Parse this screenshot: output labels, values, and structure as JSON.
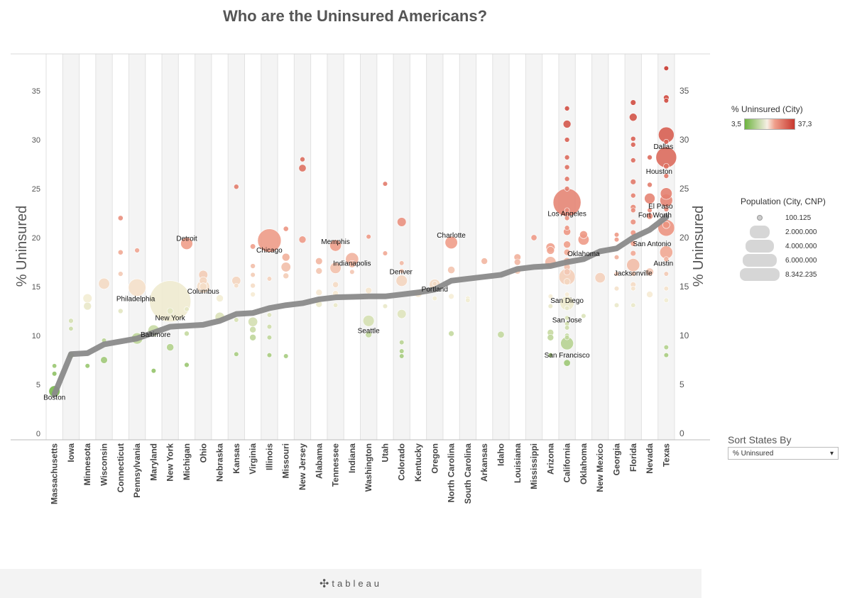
{
  "title": "Who are the Uninsured Americans?",
  "footer": {
    "brand": "tableau"
  },
  "legends": {
    "color": {
      "title": "% Uninsured (City)",
      "min_label": "3,5",
      "max_label": "37,3"
    },
    "size": {
      "title": "Population (City, CNP)",
      "entries": [
        "100.125",
        "2.000.000",
        "4.000.000",
        "6.000.000",
        "8.342.235"
      ]
    }
  },
  "sort_control": {
    "label": "Sort States By",
    "selected": "% Uninsured"
  },
  "chart_data": {
    "type": "scatter",
    "title": "Who are the Uninsured Americans?",
    "ylabel": "% Uninsured",
    "xlabel": "",
    "ylim": [
      0,
      38
    ],
    "y_ticks": [
      0,
      5,
      10,
      15,
      20,
      25,
      30,
      35
    ],
    "grid": false,
    "categories": [
      "Massachusetts",
      "Iowa",
      "Minnesota",
      "Wisconsin",
      "Connecticut",
      "Pennsylvania",
      "Maryland",
      "New York",
      "Michigan",
      "Ohio",
      "Nebraska",
      "Kansas",
      "Virginia",
      "Illinois",
      "Missouri",
      "New Jersey",
      "Alabama",
      "Tennessee",
      "Indiana",
      "Washington",
      "Utah",
      "Colorado",
      "Kentucky",
      "Oregon",
      "North Carolina",
      "South Carolina",
      "Arkansas",
      "Idaho",
      "Louisiana",
      "Mississippi",
      "Arizona",
      "California",
      "Oklahoma",
      "New Mexico",
      "Georgia",
      "Florida",
      "Nevada",
      "Texas"
    ],
    "state_average": [
      4.0,
      8.1,
      8.2,
      9.1,
      9.4,
      9.7,
      10.3,
      10.9,
      11.0,
      11.1,
      11.5,
      12.2,
      12.3,
      12.8,
      13.1,
      13.3,
      13.7,
      13.9,
      13.95,
      14.0,
      14.0,
      14.2,
      14.4,
      14.7,
      15.6,
      15.8,
      16.0,
      16.2,
      16.8,
      17.0,
      17.1,
      17.5,
      17.8,
      18.6,
      18.9,
      20.0,
      20.8,
      22.1
    ],
    "labeled_cities": [
      {
        "name": "Boston",
        "state": "Massachusetts",
        "value": 4.3,
        "population": 610000
      },
      {
        "name": "Baltimore",
        "state": "Pennsylvania",
        "value": 9.7,
        "population": 620000
      },
      {
        "name": "Philadelphia",
        "state": "Pennsylvania",
        "value": 14.9,
        "population": 1500000
      },
      {
        "name": "New York",
        "state": "New York",
        "value": 13.5,
        "population": 8342235
      },
      {
        "name": "Detroit",
        "state": "Michigan",
        "value": 19.4,
        "population": 700000
      },
      {
        "name": "Columbus",
        "state": "Ohio",
        "value": 15.0,
        "population": 800000
      },
      {
        "name": "Chicago",
        "state": "Illinois",
        "value": 19.7,
        "population": 2700000
      },
      {
        "name": "Memphis",
        "state": "Tennessee",
        "value": 19.2,
        "population": 650000
      },
      {
        "name": "Indianapolis",
        "state": "Indiana",
        "value": 17.8,
        "population": 830000
      },
      {
        "name": "Seattle",
        "state": "Washington",
        "value": 11.5,
        "population": 620000
      },
      {
        "name": "Denver",
        "state": "Colorado",
        "value": 15.6,
        "population": 620000
      },
      {
        "name": "Portland",
        "state": "Oregon",
        "value": 15.2,
        "population": 590000
      },
      {
        "name": "Charlotte",
        "state": "North Carolina",
        "value": 19.5,
        "population": 760000
      },
      {
        "name": "Los Angeles",
        "state": "California",
        "value": 23.6,
        "population": 3800000
      },
      {
        "name": "San Diego",
        "state": "California",
        "value": 16.0,
        "population": 1300000
      },
      {
        "name": "San Jose",
        "state": "California",
        "value": 13.3,
        "population": 960000
      },
      {
        "name": "San Francisco",
        "state": "California",
        "value": 9.2,
        "population": 810000
      },
      {
        "name": "Oklahoma",
        "state": "Oklahoma",
        "value": 19.8,
        "population": 590000
      },
      {
        "name": "Jacksonville",
        "state": "Florida",
        "value": 17.2,
        "population": 830000
      },
      {
        "name": "Dallas",
        "state": "Texas",
        "value": 30.5,
        "population": 1200000
      },
      {
        "name": "Houston",
        "state": "Texas",
        "value": 28.2,
        "population": 2100000
      },
      {
        "name": "El Paso",
        "state": "Texas",
        "value": 24.5,
        "population": 670000
      },
      {
        "name": "Fort Worth",
        "state": "Texas",
        "value": 23.8,
        "population": 780000
      },
      {
        "name": "San Antonio",
        "state": "Texas",
        "value": 21.0,
        "population": 1350000
      },
      {
        "name": "Austin",
        "state": "Texas",
        "value": 18.5,
        "population": 820000
      }
    ],
    "other_cities": [
      [
        "Massachusetts",
        6.9,
        100000
      ],
      [
        "Massachusetts",
        6.1,
        110000
      ],
      [
        "Iowa",
        11.5,
        120000
      ],
      [
        "Iowa",
        10.7,
        105000
      ],
      [
        "Iowa",
        8.0,
        200000
      ],
      [
        "Minnesota",
        13.8,
        400000
      ],
      [
        "Minnesota",
        13.0,
        300000
      ],
      [
        "Minnesota",
        6.9,
        110000
      ],
      [
        "Wisconsin",
        15.3,
        600000
      ],
      [
        "Wisconsin",
        7.5,
        230000
      ],
      [
        "Wisconsin",
        9.5,
        110000
      ],
      [
        "Connecticut",
        22.0,
        130000
      ],
      [
        "Connecticut",
        18.5,
        125000
      ],
      [
        "Connecticut",
        16.3,
        120000
      ],
      [
        "Connecticut",
        12.5,
        120000
      ],
      [
        "Pennsylvania",
        18.7,
        120000
      ],
      [
        "Maryland",
        10.5,
        630000
      ],
      [
        "Maryland",
        6.4,
        110000
      ],
      [
        "New York",
        8.8,
        260000
      ],
      [
        "New York",
        12.5,
        200000
      ],
      [
        "Michigan",
        12.7,
        110000
      ],
      [
        "Michigan",
        7.0,
        115000
      ],
      [
        "Michigan",
        10.2,
        120000
      ],
      [
        "Ohio",
        16.2,
        400000
      ],
      [
        "Ohio",
        15.6,
        300000
      ],
      [
        "Ohio",
        15.0,
        280000
      ],
      [
        "Nebraska",
        11.9,
        430000
      ],
      [
        "Nebraska",
        13.8,
        250000
      ],
      [
        "Kansas",
        25.2,
        120000
      ],
      [
        "Kansas",
        15.6,
        380000
      ],
      [
        "Kansas",
        15.1,
        105000
      ],
      [
        "Kansas",
        11.6,
        110000
      ],
      [
        "Kansas",
        8.1,
        110000
      ],
      [
        "Virginia",
        19.1,
        140000
      ],
      [
        "Virginia",
        17.1,
        120000
      ],
      [
        "Virginia",
        16.2,
        110000
      ],
      [
        "Virginia",
        15.1,
        120000
      ],
      [
        "Virginia",
        14.2,
        120000
      ],
      [
        "Virginia",
        11.4,
        440000
      ],
      [
        "Virginia",
        10.6,
        200000
      ],
      [
        "Virginia",
        9.8,
        200000
      ],
      [
        "Illinois",
        15.8,
        110000
      ],
      [
        "Illinois",
        12.1,
        110000
      ],
      [
        "Illinois",
        10.9,
        110000
      ],
      [
        "Illinois",
        9.8,
        110000
      ],
      [
        "Illinois",
        8.0,
        110000
      ],
      [
        "Missouri",
        20.9,
        130000
      ],
      [
        "Missouri",
        18.0,
        300000
      ],
      [
        "Missouri",
        17.0,
        450000
      ],
      [
        "Missouri",
        16.1,
        160000
      ],
      [
        "Missouri",
        7.9,
        110000
      ],
      [
        "New Jersey",
        28.0,
        120000
      ],
      [
        "New Jersey",
        27.1,
        270000
      ],
      [
        "New Jersey",
        19.8,
        250000
      ],
      [
        "Alabama",
        17.6,
        230000
      ],
      [
        "Alabama",
        16.6,
        200000
      ],
      [
        "Alabama",
        14.4,
        200000
      ],
      [
        "Alabama",
        13.2,
        200000
      ],
      [
        "Tennessee",
        16.9,
        600000
      ],
      [
        "Tennessee",
        15.2,
        170000
      ],
      [
        "Tennessee",
        14.3,
        170000
      ],
      [
        "Tennessee",
        13.1,
        110000
      ],
      [
        "Indiana",
        17.3,
        250000
      ],
      [
        "Indiana",
        16.5,
        110000
      ],
      [
        "Washington",
        20.1,
        110000
      ],
      [
        "Washington",
        14.6,
        200000
      ],
      [
        "Washington",
        10.1,
        200000
      ],
      [
        "Utah",
        25.5,
        110000
      ],
      [
        "Utah",
        18.4,
        110000
      ],
      [
        "Utah",
        13.0,
        110000
      ],
      [
        "Colorado",
        21.6,
        400000
      ],
      [
        "Colorado",
        17.4,
        110000
      ],
      [
        "Colorado",
        16.6,
        110000
      ],
      [
        "Colorado",
        12.2,
        400000
      ],
      [
        "Colorado",
        9.3,
        110000
      ],
      [
        "Colorado",
        8.4,
        110000
      ],
      [
        "Colorado",
        7.9,
        110000
      ],
      [
        "Kentucky",
        14.3,
        300000
      ],
      [
        "Oregon",
        15.3,
        110000
      ],
      [
        "Oregon",
        13.8,
        110000
      ],
      [
        "North Carolina",
        16.7,
        260000
      ],
      [
        "North Carolina",
        14.0,
        150000
      ],
      [
        "North Carolina",
        10.2,
        150000
      ],
      [
        "South Carolina",
        13.8,
        110000
      ],
      [
        "South Carolina",
        13.6,
        110000
      ],
      [
        "Arkansas",
        17.6,
        200000
      ],
      [
        "Idaho",
        10.1,
        220000
      ],
      [
        "Louisiana",
        18.0,
        230000
      ],
      [
        "Louisiana",
        17.5,
        200000
      ],
      [
        "Louisiana",
        16.6,
        200000
      ],
      [
        "Mississippi",
        20.0,
        170000
      ],
      [
        "Arizona",
        19.0,
        400000
      ],
      [
        "Arizona",
        18.7,
        300000
      ],
      [
        "Arizona",
        17.5,
        600000
      ],
      [
        "Arizona",
        14.0,
        110000
      ],
      [
        "Arizona",
        13.0,
        110000
      ],
      [
        "Arizona",
        10.3,
        200000
      ],
      [
        "Arizona",
        9.8,
        200000
      ],
      [
        "Arizona",
        8.0,
        110000
      ],
      [
        "California",
        33.2,
        120000
      ],
      [
        "California",
        31.6,
        300000
      ],
      [
        "California",
        30.0,
        120000
      ],
      [
        "California",
        28.2,
        120000
      ],
      [
        "California",
        27.2,
        120000
      ],
      [
        "California",
        26.0,
        120000
      ],
      [
        "California",
        25.0,
        120000
      ],
      [
        "California",
        22.8,
        120000
      ],
      [
        "California",
        22.0,
        120000
      ],
      [
        "California",
        21.0,
        120000
      ],
      [
        "California",
        20.6,
        260000
      ],
      [
        "California",
        19.3,
        250000
      ],
      [
        "California",
        18.5,
        200000
      ],
      [
        "California",
        17.6,
        250000
      ],
      [
        "California",
        17.0,
        200000
      ],
      [
        "California",
        16.5,
        200000
      ],
      [
        "California",
        15.5,
        200000
      ],
      [
        "California",
        14.2,
        110000
      ],
      [
        "California",
        12.8,
        110000
      ],
      [
        "California",
        11.8,
        110000
      ],
      [
        "California",
        11.2,
        110000
      ],
      [
        "California",
        10.8,
        110000
      ],
      [
        "California",
        10.0,
        110000
      ],
      [
        "California",
        9.8,
        110000
      ],
      [
        "California",
        7.2,
        220000
      ],
      [
        "Oklahoma",
        20.3,
        300000
      ],
      [
        "Oklahoma",
        12.0,
        110000
      ],
      [
        "New Mexico",
        15.9,
        520000
      ],
      [
        "Georgia",
        20.3,
        110000
      ],
      [
        "Georgia",
        19.8,
        110000
      ],
      [
        "Georgia",
        18.0,
        110000
      ],
      [
        "Georgia",
        16.3,
        110000
      ],
      [
        "Georgia",
        14.8,
        110000
      ],
      [
        "Georgia",
        13.1,
        110000
      ],
      [
        "Florida",
        33.8,
        150000
      ],
      [
        "Florida",
        32.3,
        300000
      ],
      [
        "Florida",
        30.1,
        120000
      ],
      [
        "Florida",
        29.5,
        120000
      ],
      [
        "Florida",
        27.9,
        120000
      ],
      [
        "Florida",
        25.7,
        150000
      ],
      [
        "Florida",
        24.3,
        120000
      ],
      [
        "Florida",
        23.1,
        150000
      ],
      [
        "Florida",
        22.8,
        120000
      ],
      [
        "Florida",
        21.6,
        150000
      ],
      [
        "Florida",
        20.5,
        150000
      ],
      [
        "Florida",
        19.4,
        150000
      ],
      [
        "Florida",
        18.4,
        150000
      ],
      [
        "Florida",
        16.3,
        110000
      ],
      [
        "Florida",
        15.2,
        150000
      ],
      [
        "Florida",
        14.8,
        110000
      ],
      [
        "Florida",
        13.1,
        110000
      ],
      [
        "Nevada",
        28.2,
        120000
      ],
      [
        "Nevada",
        25.4,
        120000
      ],
      [
        "Nevada",
        24.0,
        550000
      ],
      [
        "Nevada",
        22.8,
        110000
      ],
      [
        "Nevada",
        22.2,
        200000
      ],
      [
        "Nevada",
        16.5,
        300000
      ],
      [
        "Nevada",
        14.2,
        200000
      ],
      [
        "Texas",
        37.3,
        110000
      ],
      [
        "Texas",
        34.3,
        150000
      ],
      [
        "Texas",
        34.0,
        110000
      ],
      [
        "Texas",
        29.8,
        120000
      ],
      [
        "Texas",
        27.3,
        150000
      ],
      [
        "Texas",
        26.3,
        120000
      ],
      [
        "Texas",
        22.9,
        120000
      ],
      [
        "Texas",
        21.3,
        250000
      ],
      [
        "Texas",
        17.8,
        130000
      ],
      [
        "Texas",
        16.3,
        110000
      ],
      [
        "Texas",
        14.8,
        110000
      ],
      [
        "Texas",
        13.6,
        110000
      ],
      [
        "Texas",
        8.8,
        110000
      ],
      [
        "Texas",
        8.0,
        110000
      ]
    ]
  }
}
